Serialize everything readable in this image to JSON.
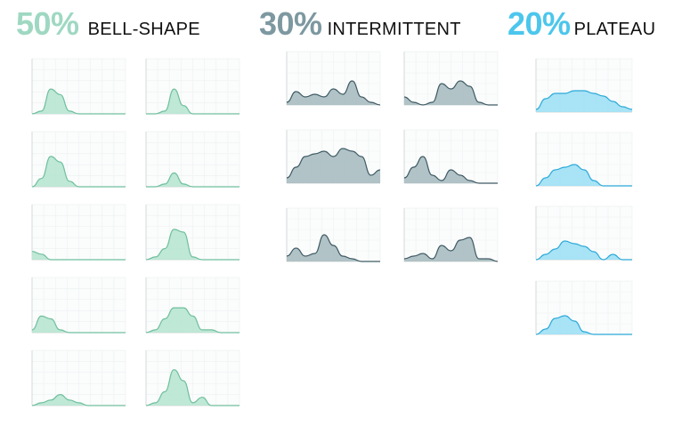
{
  "groups": [
    {
      "percent": "50%",
      "label": "BELL-SHAPE",
      "color": "#9fd8c2",
      "fill": "#b8e6d2",
      "stroke": "#6fbf9e"
    },
    {
      "percent": "30%",
      "label": "INTERMITTENT",
      "color": "#7d98a0",
      "fill": "#a9bcc0",
      "stroke": "#3f5a64"
    },
    {
      "percent": "20%",
      "label": "PLATEAU",
      "color": "#4cc6ec",
      "fill": "#9fe0f5",
      "stroke": "#2aa9d8"
    }
  ],
  "chart_data": [
    {
      "type": "area",
      "group": "bell-shape",
      "x": [
        0,
        10,
        20,
        30,
        40,
        50,
        60,
        70,
        80,
        90,
        100
      ],
      "y": [
        0,
        1,
        9,
        7,
        1,
        0,
        0,
        0,
        0,
        0,
        0
      ],
      "ylim": [
        0,
        20
      ]
    },
    {
      "type": "area",
      "group": "bell-shape",
      "x": [
        0,
        10,
        20,
        30,
        40,
        50,
        60,
        70,
        80,
        90,
        100
      ],
      "y": [
        0,
        0,
        1,
        9,
        3,
        0,
        0,
        0,
        0,
        0,
        0
      ],
      "ylim": [
        0,
        20
      ]
    },
    {
      "type": "area",
      "group": "bell-shape",
      "x": [
        0,
        10,
        20,
        30,
        40,
        50,
        60,
        70,
        80,
        90,
        100
      ],
      "y": [
        0,
        3,
        11,
        9,
        2,
        0,
        0,
        0,
        0,
        0,
        0
      ],
      "ylim": [
        0,
        20
      ]
    },
    {
      "type": "area",
      "group": "bell-shape",
      "x": [
        0,
        10,
        20,
        30,
        40,
        50,
        60,
        70,
        80,
        90,
        100
      ],
      "y": [
        0,
        0,
        1,
        5,
        1,
        0,
        0,
        0,
        0,
        0,
        0
      ],
      "ylim": [
        0,
        20
      ]
    },
    {
      "type": "area",
      "group": "bell-shape",
      "x": [
        0,
        10,
        20,
        30,
        40,
        50,
        60,
        70,
        80,
        90,
        100
      ],
      "y": [
        3,
        2,
        0,
        0,
        0,
        0,
        0,
        0,
        0,
        0,
        0
      ],
      "ylim": [
        0,
        20
      ]
    },
    {
      "type": "area",
      "group": "bell-shape",
      "x": [
        0,
        10,
        20,
        30,
        40,
        50,
        60,
        70,
        80,
        90,
        100
      ],
      "y": [
        0,
        1,
        4,
        11,
        10,
        1,
        0,
        0,
        0,
        0,
        0
      ],
      "ylim": [
        0,
        20
      ]
    },
    {
      "type": "area",
      "group": "bell-shape",
      "x": [
        0,
        10,
        20,
        30,
        40,
        50,
        60,
        70,
        80,
        90,
        100
      ],
      "y": [
        1,
        6,
        5,
        1,
        0,
        0,
        0,
        0,
        0,
        0,
        0
      ],
      "ylim": [
        0,
        20
      ]
    },
    {
      "type": "area",
      "group": "bell-shape",
      "x": [
        0,
        10,
        20,
        30,
        40,
        50,
        60,
        70,
        80,
        90,
        100
      ],
      "y": [
        0,
        1,
        5,
        9,
        9,
        6,
        1,
        1,
        0,
        0,
        0
      ],
      "ylim": [
        0,
        20
      ]
    },
    {
      "type": "area",
      "group": "bell-shape",
      "x": [
        0,
        10,
        20,
        30,
        40,
        50,
        60,
        70,
        80,
        90,
        100
      ],
      "y": [
        0,
        1,
        2,
        4,
        2,
        1,
        0,
        0,
        0,
        0,
        0
      ],
      "ylim": [
        0,
        20
      ]
    },
    {
      "type": "area",
      "group": "bell-shape",
      "x": [
        0,
        10,
        20,
        30,
        40,
        50,
        60,
        70,
        80,
        90,
        100
      ],
      "y": [
        0,
        1,
        5,
        13,
        9,
        1,
        3,
        0,
        0,
        0,
        0
      ],
      "ylim": [
        0,
        20
      ]
    },
    {
      "type": "area",
      "group": "intermittent",
      "x": [
        0,
        10,
        20,
        30,
        40,
        50,
        60,
        70,
        80,
        90,
        100
      ],
      "y": [
        1,
        5,
        3,
        4,
        3,
        6,
        4,
        9,
        3,
        1,
        0
      ],
      "ylim": [
        0,
        20
      ]
    },
    {
      "type": "area",
      "group": "intermittent",
      "x": [
        0,
        10,
        20,
        30,
        40,
        50,
        60,
        70,
        80,
        90,
        100
      ],
      "y": [
        3,
        1,
        0,
        1,
        8,
        6,
        9,
        7,
        1,
        0,
        0
      ],
      "ylim": [
        0,
        20
      ]
    },
    {
      "type": "area",
      "group": "intermittent",
      "x": [
        0,
        10,
        20,
        30,
        40,
        50,
        60,
        70,
        80,
        90,
        100
      ],
      "y": [
        2,
        6,
        10,
        11,
        12,
        10,
        13,
        12,
        10,
        3,
        5
      ],
      "ylim": [
        0,
        20
      ]
    },
    {
      "type": "area",
      "group": "intermittent",
      "x": [
        0,
        10,
        20,
        30,
        40,
        50,
        60,
        70,
        80,
        90,
        100
      ],
      "y": [
        2,
        6,
        10,
        3,
        1,
        5,
        3,
        1,
        0,
        0,
        0
      ],
      "ylim": [
        0,
        20
      ]
    },
    {
      "type": "area",
      "group": "intermittent",
      "x": [
        0,
        10,
        20,
        30,
        40,
        50,
        60,
        70,
        80,
        90,
        100
      ],
      "y": [
        2,
        5,
        2,
        3,
        10,
        6,
        2,
        1,
        0,
        0,
        0
      ],
      "ylim": [
        0,
        20
      ]
    },
    {
      "type": "area",
      "group": "intermittent",
      "x": [
        0,
        10,
        20,
        30,
        40,
        50,
        60,
        70,
        80,
        90,
        100
      ],
      "y": [
        1,
        2,
        3,
        1,
        6,
        4,
        8,
        9,
        1,
        1,
        0
      ],
      "ylim": [
        0,
        20
      ]
    },
    {
      "type": "area",
      "group": "plateau",
      "x": [
        0,
        10,
        20,
        30,
        40,
        50,
        60,
        70,
        80,
        90,
        100
      ],
      "y": [
        1,
        5,
        7,
        7,
        8,
        8,
        7,
        6,
        4,
        2,
        1
      ],
      "ylim": [
        0,
        20
      ]
    },
    {
      "type": "area",
      "group": "plateau",
      "x": [
        0,
        10,
        20,
        30,
        40,
        50,
        60,
        70,
        80,
        90,
        100
      ],
      "y": [
        0,
        3,
        6,
        7,
        8,
        6,
        2,
        0,
        0,
        0,
        0
      ],
      "ylim": [
        0,
        20
      ]
    },
    {
      "type": "area",
      "group": "plateau",
      "x": [
        0,
        10,
        20,
        30,
        40,
        50,
        60,
        70,
        80,
        90,
        100
      ],
      "y": [
        0,
        2,
        4,
        7,
        6,
        5,
        3,
        0,
        2,
        0,
        0
      ],
      "ylim": [
        0,
        20
      ]
    },
    {
      "type": "area",
      "group": "plateau",
      "x": [
        0,
        10,
        20,
        30,
        40,
        50,
        60,
        70,
        80,
        90,
        100
      ],
      "y": [
        0,
        2,
        6,
        7,
        5,
        1,
        0,
        0,
        0,
        0,
        0
      ],
      "ylim": [
        0,
        20
      ]
    }
  ]
}
